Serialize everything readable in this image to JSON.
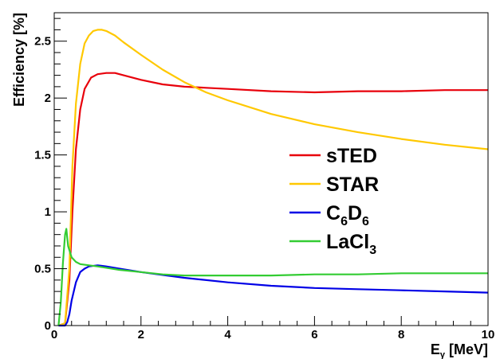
{
  "chart_data": {
    "type": "line",
    "title": "",
    "xlabel": "E",
    "xlabel_sub": "γ",
    "xlabel_unit": " [MeV]",
    "ylabel": "Efficiency [%]",
    "xlim": [
      0,
      10
    ],
    "ylim": [
      0,
      2.75
    ],
    "x_ticks": [
      0,
      2,
      4,
      6,
      8,
      10
    ],
    "x_tick_labels": [
      "0",
      "2",
      "4",
      "6",
      "8",
      "10"
    ],
    "y_ticks": [
      0,
      0.5,
      1,
      1.5,
      2,
      2.5
    ],
    "y_tick_labels": [
      "0",
      "0.5",
      "1",
      "1.5",
      "2",
      "2.5"
    ],
    "grid": false,
    "legend_position": "center-right",
    "series": [
      {
        "name": "sTED",
        "legend": {
          "main": "sTED",
          "sub": "",
          "tail": "",
          "sub2": ""
        },
        "color": "#e8000b",
        "x": [
          0.1,
          0.25,
          0.35,
          0.42,
          0.5,
          0.6,
          0.7,
          0.85,
          1.0,
          1.2,
          1.4,
          1.6,
          2.0,
          2.5,
          3.0,
          3.5,
          4.0,
          5.0,
          6.0,
          7.0,
          8.0,
          9.0,
          10.0
        ],
        "y": [
          0.0,
          0.02,
          0.4,
          1.0,
          1.55,
          1.9,
          2.08,
          2.18,
          2.21,
          2.22,
          2.22,
          2.2,
          2.16,
          2.12,
          2.1,
          2.09,
          2.08,
          2.06,
          2.05,
          2.06,
          2.06,
          2.07,
          2.07
        ]
      },
      {
        "name": "STAR",
        "legend": {
          "main": "STAR",
          "sub": "",
          "tail": "",
          "sub2": ""
        },
        "color": "#ffc800",
        "x": [
          0.1,
          0.25,
          0.35,
          0.42,
          0.5,
          0.6,
          0.7,
          0.8,
          0.9,
          1.0,
          1.1,
          1.2,
          1.4,
          1.6,
          2.0,
          2.5,
          3.0,
          3.5,
          4.0,
          5.0,
          6.0,
          7.0,
          8.0,
          9.0,
          10.0
        ],
        "y": [
          0.0,
          0.02,
          0.5,
          1.4,
          1.95,
          2.3,
          2.48,
          2.55,
          2.59,
          2.6,
          2.6,
          2.59,
          2.55,
          2.49,
          2.38,
          2.25,
          2.14,
          2.05,
          1.98,
          1.86,
          1.77,
          1.7,
          1.64,
          1.59,
          1.55
        ]
      },
      {
        "name": "C6D6",
        "legend": {
          "main": "C",
          "sub": "6",
          "tail": "D",
          "sub2": "6"
        },
        "color": "#0000e6",
        "x": [
          0.1,
          0.25,
          0.3,
          0.35,
          0.4,
          0.5,
          0.6,
          0.7,
          0.8,
          1.0,
          1.2,
          1.5,
          2.0,
          3.0,
          4.0,
          5.0,
          6.0,
          7.0,
          8.0,
          9.0,
          10.0
        ],
        "y": [
          0.0,
          0.0,
          0.03,
          0.1,
          0.22,
          0.38,
          0.47,
          0.5,
          0.52,
          0.53,
          0.52,
          0.5,
          0.47,
          0.42,
          0.38,
          0.35,
          0.33,
          0.32,
          0.31,
          0.3,
          0.29
        ]
      },
      {
        "name": "LaCl3",
        "legend": {
          "main": "LaCl",
          "sub": "3",
          "tail": "",
          "sub2": ""
        },
        "color": "#33cc33",
        "x": [
          0.1,
          0.15,
          0.2,
          0.25,
          0.28,
          0.32,
          0.4,
          0.5,
          0.6,
          0.8,
          1.0,
          1.5,
          2.0,
          2.5,
          3.0,
          4.0,
          5.0,
          6.0,
          7.0,
          8.0,
          9.0,
          10.0
        ],
        "y": [
          0.0,
          0.2,
          0.55,
          0.8,
          0.85,
          0.7,
          0.6,
          0.56,
          0.54,
          0.53,
          0.52,
          0.49,
          0.47,
          0.45,
          0.44,
          0.44,
          0.44,
          0.45,
          0.45,
          0.46,
          0.46,
          0.46
        ]
      }
    ]
  }
}
